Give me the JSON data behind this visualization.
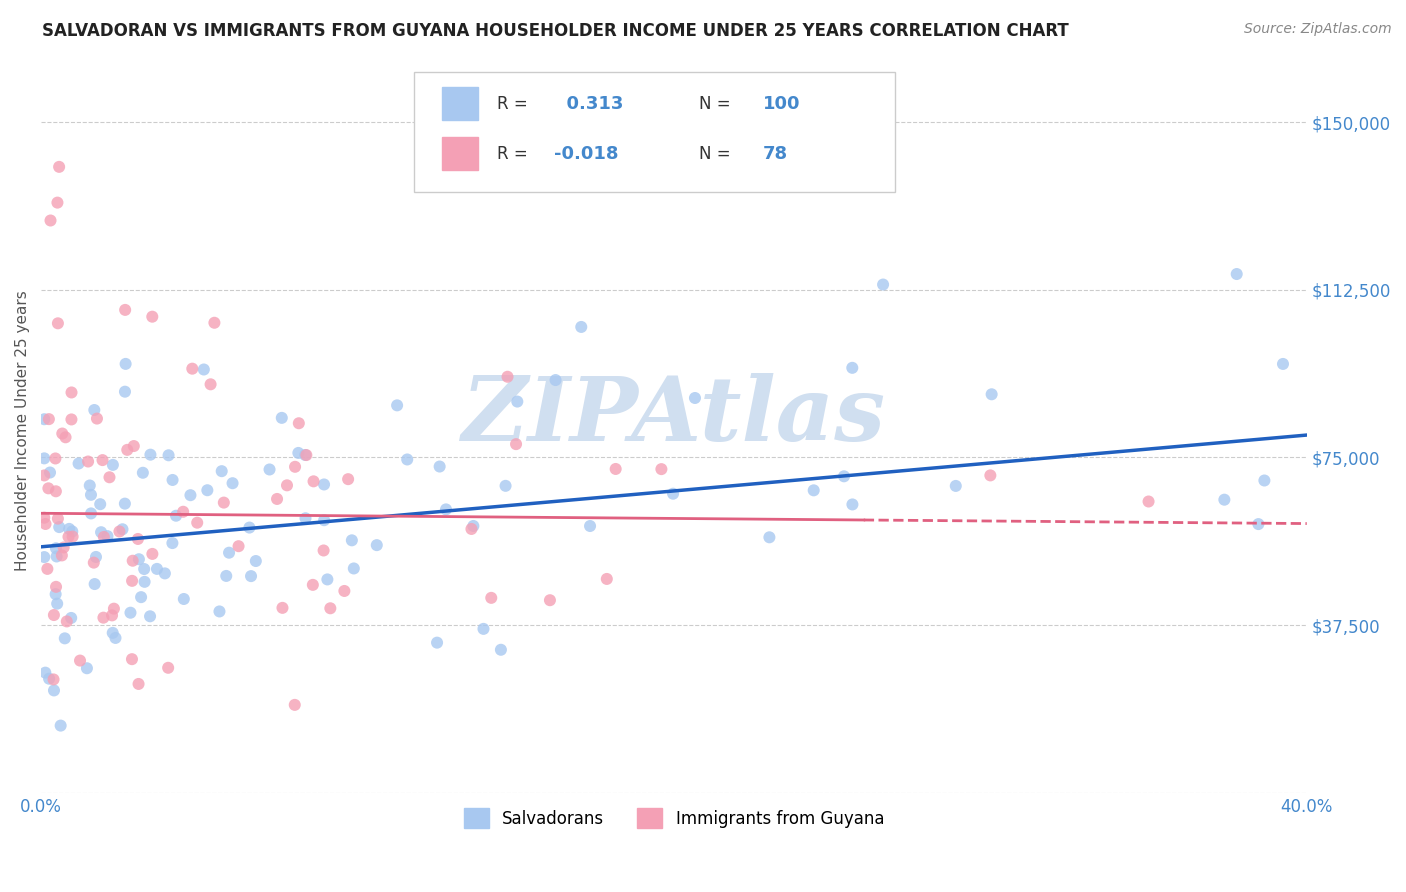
{
  "title": "SALVADORAN VS IMMIGRANTS FROM GUYANA HOUSEHOLDER INCOME UNDER 25 YEARS CORRELATION CHART",
  "source": "Source: ZipAtlas.com",
  "ylabel": "Householder Income Under 25 years",
  "yticks": [
    0,
    37500,
    75000,
    112500,
    150000
  ],
  "ytick_labels": [
    "",
    "$37,500",
    "$75,000",
    "$112,500",
    "$150,000"
  ],
  "xlim": [
    0.0,
    0.4
  ],
  "ylim": [
    0,
    162000
  ],
  "r_salvadoran": 0.313,
  "n_salvadoran": 100,
  "r_guyana": -0.018,
  "n_guyana": 78,
  "color_salvadoran": "#A8C8F0",
  "color_guyana": "#F4A0B5",
  "color_trendline_salvadoran": "#2060C0",
  "color_trendline_guyana": "#E06080",
  "color_axis_labels": "#4488CC",
  "color_title": "#222222",
  "background_color": "#FFFFFF",
  "watermark": "ZIPAtlas",
  "watermark_color": "#D0DFF0",
  "legend_label_salvadoran": "Salvadorans",
  "legend_label_guyana": "Immigrants from Guyana"
}
